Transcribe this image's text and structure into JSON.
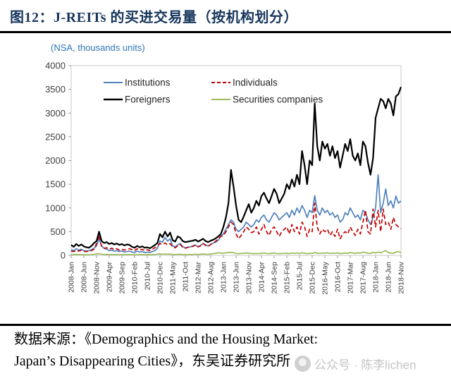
{
  "figure": {
    "title": "图12：J-REITs 的买进交易量（按机构划分）",
    "axis_unit_label": "(NSA, thousands units)",
    "source_line1": "数据来源：《Demographics and the Housing Market:",
    "source_line2": "Japan’s Disappearing Cities》，东吴证券研究所",
    "watermark_text": "公众号 · 陈李lichen",
    "watermark_icon": "wechat-official-account-logo"
  },
  "colors": {
    "title_navy": "#17365d",
    "unit_label_blue": "#2e75b6",
    "axis_text": "#404040",
    "plot_border": "#c9c9c9",
    "rule_black": "#000000",
    "watermark_gray": "#c4c4c4"
  },
  "chart_data": {
    "type": "line",
    "title": "",
    "xlabel": "",
    "ylabel": "(NSA, thousands units)",
    "ylim": [
      0,
      4000
    ],
    "y_ticks": [
      0,
      500,
      1000,
      1500,
      2000,
      2500,
      3000,
      3500,
      4000
    ],
    "frequency": "monthly",
    "x_start": "2008-Jan",
    "x_end": "2018-Nov",
    "n_points": 131,
    "x_tick_every_n_months": 5,
    "x_tick_labels": [
      "2008-Jan",
      "2008-Jun",
      "2008-Nov",
      "2009-Apr",
      "2009-Sep",
      "2010-Feb",
      "2010-Jul",
      "2010-Dec",
      "2011-May",
      "2011-Oct",
      "2012-Mar",
      "2012-Aug",
      "2013-Jan",
      "2013-Jun",
      "2013-Nov",
      "2014-Apr",
      "2014-Sep",
      "2015-Feb",
      "2015-Jul",
      "2015-Dec",
      "2016-May",
      "2016-Oct",
      "2017-Mar",
      "2017-Aug",
      "2018-Jan",
      "2018-Jun",
      "2018-Nov"
    ],
    "grid": false,
    "legend_position": "top-left-inside",
    "legend_grid": [
      [
        "Institutions",
        "Individuals"
      ],
      [
        "Foreigners",
        "Securities companies"
      ]
    ],
    "series": [
      {
        "name": "Institutions",
        "color": "#4f81bd",
        "style": "solid",
        "values": [
          120,
          100,
          140,
          110,
          130,
          100,
          90,
          100,
          120,
          150,
          200,
          350,
          200,
          150,
          130,
          100,
          110,
          90,
          100,
          80,
          90,
          70,
          80,
          90,
          70,
          60,
          90,
          70,
          80,
          60,
          70,
          60,
          80,
          100,
          150,
          300,
          280,
          380,
          300,
          350,
          200,
          180,
          220,
          250,
          180,
          160,
          170,
          180,
          200,
          220,
          180,
          210,
          250,
          220,
          200,
          230,
          260,
          280,
          320,
          400,
          450,
          550,
          650,
          750,
          700,
          550,
          500,
          550,
          600,
          700,
          650,
          600,
          650,
          750,
          700,
          800,
          850,
          750,
          700,
          800,
          900,
          850,
          750,
          800,
          850,
          900,
          800,
          950,
          850,
          1000,
          900,
          1050,
          950,
          800,
          950,
          900,
          1260,
          950,
          850,
          1000,
          900,
          950,
          850,
          900,
          800,
          850,
          700,
          750,
          900,
          850,
          1000,
          900,
          800,
          850,
          750,
          950,
          900,
          750,
          650,
          800,
          1000,
          1700,
          900,
          1100,
          1400,
          1050,
          1150,
          1000,
          1250,
          1100,
          1150
        ]
      },
      {
        "name": "Individuals",
        "color": "#c00000",
        "style": "dashed",
        "values": [
          90,
          80,
          100,
          90,
          110,
          85,
          80,
          90,
          100,
          130,
          250,
          430,
          180,
          150,
          160,
          130,
          150,
          120,
          140,
          110,
          130,
          110,
          130,
          140,
          120,
          100,
          140,
          110,
          130,
          100,
          120,
          100,
          130,
          160,
          200,
          250,
          230,
          260,
          220,
          250,
          180,
          160,
          200,
          230,
          170,
          150,
          170,
          180,
          190,
          220,
          180,
          200,
          250,
          210,
          190,
          230,
          260,
          300,
          350,
          400,
          420,
          500,
          600,
          700,
          650,
          450,
          350,
          420,
          500,
          600,
          550,
          480,
          500,
          600,
          450,
          550,
          650,
          500,
          420,
          550,
          600,
          500,
          400,
          500,
          550,
          600,
          450,
          650,
          500,
          600,
          450,
          700,
          600,
          400,
          550,
          500,
          1100,
          600,
          450,
          550,
          500,
          550,
          420,
          500,
          400,
          550,
          350,
          450,
          500,
          450,
          600,
          500,
          420,
          550,
          450,
          700,
          950,
          500,
          450,
          975,
          600,
          950,
          500,
          975,
          650,
          700,
          550,
          800,
          650,
          600,
          560
        ]
      },
      {
        "name": "Foreigners",
        "color": "#000000",
        "style": "solid",
        "values": [
          220,
          180,
          240,
          200,
          230,
          190,
          170,
          160,
          200,
          260,
          300,
          500,
          300,
          260,
          280,
          240,
          260,
          230,
          250,
          220,
          240,
          210,
          230,
          220,
          180,
          160,
          200,
          170,
          190,
          160,
          170,
          150,
          180,
          220,
          260,
          450,
          380,
          500,
          400,
          480,
          320,
          290,
          400,
          370,
          300,
          280,
          290,
          300,
          310,
          330,
          290,
          320,
          350,
          300,
          280,
          310,
          330,
          360,
          400,
          450,
          600,
          800,
          1100,
          1800,
          1450,
          1050,
          750,
          700,
          820,
          950,
          1080,
          900,
          1000,
          1150,
          1050,
          1250,
          1320,
          1200,
          1100,
          1250,
          1400,
          1300,
          1100,
          1200,
          1300,
          1500,
          1400,
          1600,
          1450,
          1700,
          1500,
          2200,
          1900,
          1500,
          2000,
          1900,
          3200,
          2300,
          2000,
          2400,
          2250,
          2350,
          2100,
          2300,
          2050,
          2200,
          1850,
          2100,
          2350,
          2200,
          2450,
          2100,
          2000,
          2150,
          1900,
          2400,
          2300,
          1950,
          1700,
          2050,
          2900,
          3100,
          3300,
          3250,
          3100,
          3300,
          3200,
          2950,
          3350,
          3400,
          3550
        ]
      },
      {
        "name": "Securities companies",
        "color": "#9bbb59",
        "style": "solid",
        "values": [
          15,
          18,
          20,
          16,
          18,
          15,
          14,
          15,
          18,
          22,
          30,
          35,
          25,
          20,
          22,
          18,
          20,
          16,
          18,
          15,
          18,
          15,
          18,
          20,
          15,
          14,
          18,
          15,
          16,
          14,
          15,
          13,
          16,
          20,
          25,
          30,
          25,
          30,
          25,
          28,
          20,
          18,
          22,
          25,
          18,
          16,
          18,
          20,
          20,
          25,
          20,
          24,
          30,
          25,
          22,
          28,
          35,
          45,
          55,
          50,
          45,
          55,
          60,
          65,
          55,
          40,
          35,
          40,
          45,
          50,
          45,
          40,
          35,
          40,
          35,
          45,
          50,
          40,
          35,
          45,
          50,
          40,
          35,
          40,
          40,
          45,
          35,
          50,
          40,
          50,
          35,
          55,
          45,
          35,
          45,
          40,
          60,
          45,
          40,
          50,
          45,
          55,
          40,
          50,
          40,
          55,
          35,
          45,
          50,
          45,
          60,
          50,
          40,
          55,
          45,
          70,
          60,
          45,
          40,
          65,
          50,
          70,
          55,
          80,
          100,
          60,
          50,
          45,
          70,
          80,
          55
        ]
      }
    ]
  }
}
